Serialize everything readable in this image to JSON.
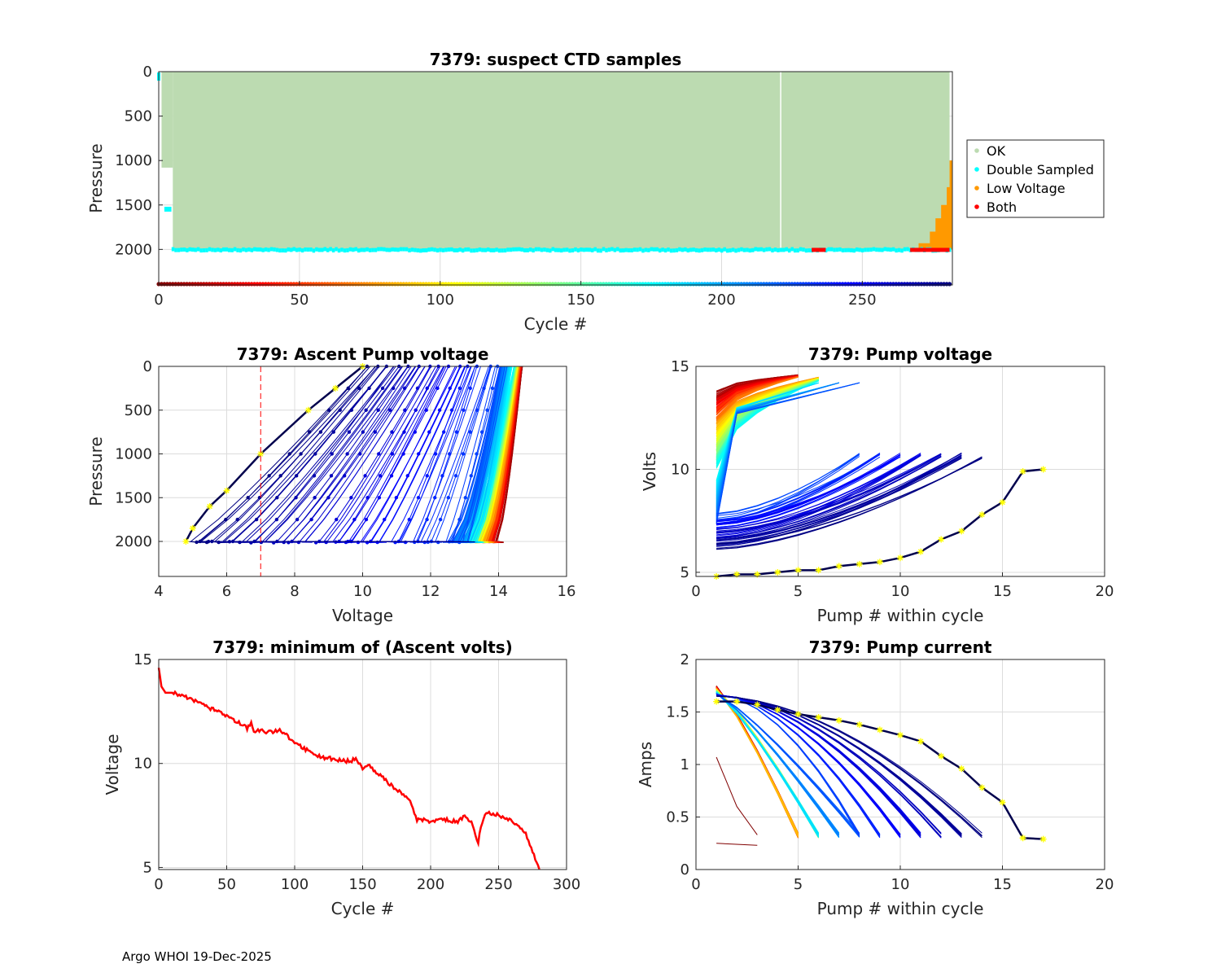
{
  "footer": "Argo WHOI 19-Dec-2025",
  "colors": {
    "ok": "#bcdbb1",
    "double_sampled": "#00ffff",
    "low_voltage": "#ff9900",
    "both": "#ff0000",
    "highlight": "#ffff00",
    "line_red": "#ff0000",
    "axis": "#262626",
    "grid": "#dcdcdc"
  },
  "chart_data": [
    {
      "id": "suspect_ctd",
      "type": "scatter",
      "title": "7379: suspect CTD samples",
      "xlabel": "Cycle #",
      "ylabel": "Pressure",
      "xlim": [
        0,
        282
      ],
      "ylim": [
        2400,
        0
      ],
      "xticks": [
        0,
        50,
        100,
        150,
        200,
        250
      ],
      "yticks": [
        0,
        500,
        1000,
        1500,
        2000
      ],
      "legend": {
        "position": "outside-right",
        "entries": [
          "OK",
          "Double Sampled",
          "Low Voltage",
          "Both"
        ]
      },
      "series": [
        {
          "name": "OK",
          "description": "profiles 0-2000 dbar for cycles 5-281",
          "x_range": [
            5,
            281
          ],
          "y_range": [
            0,
            2000
          ]
        },
        {
          "name": "Double Sampled",
          "description": "band near 2000 dbar",
          "y": 2010
        },
        {
          "name": "Low Voltage",
          "x": [
            266,
            270,
            274,
            276,
            278,
            280,
            281
          ],
          "top_pressure": [
            2000,
            1930,
            1800,
            1650,
            1500,
            1300,
            1000
          ]
        },
        {
          "name": "Both",
          "x_ranges": [
            [
              232,
              237
            ],
            [
              267,
              281
            ]
          ],
          "y": 2010
        }
      ],
      "cycle_colorbar_y": 2390
    },
    {
      "id": "ascent_pump_voltage",
      "type": "line",
      "title": "7379: Ascent Pump voltage",
      "xlabel": "Voltage",
      "ylabel": "Pressure",
      "xlim": [
        4,
        16
      ],
      "ylim": [
        2400,
        0
      ],
      "xticks": [
        4,
        6,
        8,
        10,
        12,
        14,
        16
      ],
      "yticks": [
        0,
        500,
        1000,
        1500,
        2000
      ],
      "threshold_voltage": 7,
      "series_summary": "one profile per cycle colored by cycle (red early, blue late)",
      "latest_profile": {
        "voltage": [
          4.8,
          5.0,
          5.5,
          6.0,
          7.0,
          8.4,
          9.2,
          10.0
        ],
        "pressure": [
          2000,
          1850,
          1600,
          1420,
          1000,
          500,
          250,
          0
        ]
      }
    },
    {
      "id": "pump_voltage",
      "type": "line",
      "title": "7379: Pump voltage",
      "xlabel": "Pump # within cycle",
      "ylabel": "Volts",
      "xlim": [
        0,
        20
      ],
      "ylim": [
        4.8,
        15
      ],
      "xticks": [
        0,
        5,
        10,
        15,
        20
      ],
      "yticks": [
        5,
        10,
        15
      ],
      "latest_cycle": {
        "pump": [
          1,
          2,
          3,
          4,
          5,
          6,
          7,
          8,
          9,
          10,
          11,
          12,
          13,
          14,
          15,
          16,
          17
        ],
        "volts": [
          4.8,
          4.9,
          4.9,
          5.0,
          5.1,
          5.1,
          5.3,
          5.4,
          5.5,
          5.7,
          6.0,
          6.6,
          7.0,
          7.8,
          8.4,
          9.9,
          10.0
        ]
      }
    },
    {
      "id": "min_ascent_volts",
      "type": "line",
      "title": "7379: minimum of (Ascent volts)",
      "xlabel": "Cycle #",
      "ylabel": "Voltage",
      "xlim": [
        0,
        300
      ],
      "ylim": [
        4.9,
        15
      ],
      "xticks": [
        0,
        50,
        100,
        150,
        200,
        250,
        300
      ],
      "yticks": [
        5,
        10,
        15
      ],
      "x": [
        0,
        2,
        5,
        10,
        20,
        30,
        40,
        50,
        60,
        65,
        68,
        70,
        75,
        80,
        90,
        95,
        100,
        110,
        120,
        130,
        140,
        145,
        150,
        155,
        160,
        170,
        180,
        185,
        190,
        195,
        200,
        210,
        220,
        225,
        230,
        235,
        237,
        240,
        245,
        250,
        260,
        270,
        275,
        280
      ],
      "y": [
        14.6,
        13.7,
        13.4,
        13.4,
        13.2,
        12.9,
        12.6,
        12.3,
        11.9,
        11.7,
        11.9,
        11.5,
        11.6,
        11.5,
        11.6,
        11.3,
        11.0,
        10.6,
        10.3,
        10.2,
        10.1,
        10.2,
        9.8,
        9.9,
        9.6,
        9.0,
        8.5,
        8.2,
        7.3,
        7.3,
        7.2,
        7.3,
        7.2,
        7.5,
        7.2,
        6.2,
        7.0,
        7.6,
        7.6,
        7.5,
        7.2,
        6.6,
        5.8,
        4.9
      ]
    },
    {
      "id": "pump_current",
      "type": "line",
      "title": "7379: Pump current",
      "xlabel": "Pump # within cycle",
      "ylabel": "Amps",
      "xlim": [
        0,
        20
      ],
      "ylim": [
        0,
        2
      ],
      "xticks": [
        0,
        5,
        10,
        15,
        20
      ],
      "yticks": [
        0,
        0.5,
        1,
        1.5,
        2
      ],
      "latest_cycle": {
        "pump": [
          1,
          2,
          3,
          4,
          5,
          6,
          7,
          8,
          9,
          10,
          11,
          12,
          13,
          14,
          15,
          16,
          17
        ],
        "amps": [
          1.6,
          1.6,
          1.57,
          1.52,
          1.48,
          1.45,
          1.42,
          1.38,
          1.33,
          1.28,
          1.22,
          1.08,
          0.96,
          0.78,
          0.64,
          0.3,
          0.29
        ]
      }
    }
  ]
}
